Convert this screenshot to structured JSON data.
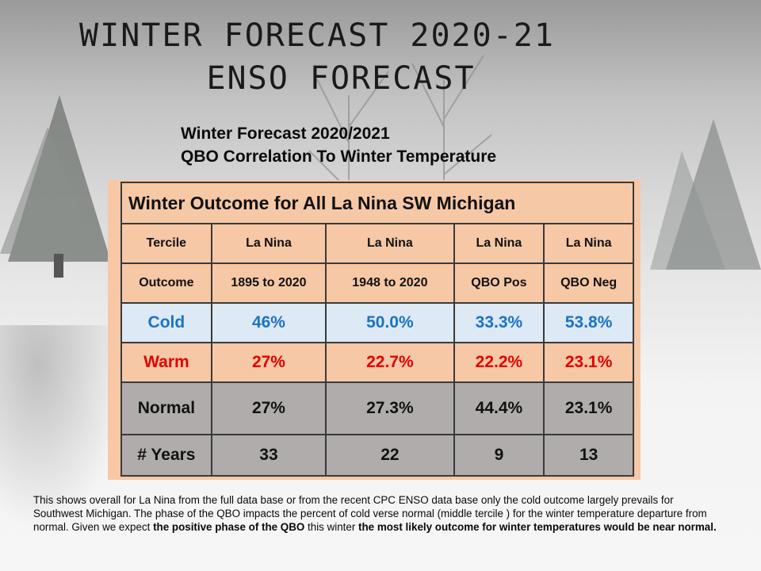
{
  "title": {
    "line1": "WINTER FORECAST 2020-21",
    "line2": "ENSO FORECAST"
  },
  "subtitle": {
    "line1": "Winter Forecast 2020/2021",
    "line2": "QBO Correlation To Winter Temperature"
  },
  "table": {
    "caption": "Winter Outcome for All La Nina SW Michigan",
    "tercile_row": [
      "Tercile",
      "La Nina",
      "La Nina",
      "La Nina",
      "La Nina"
    ],
    "outcome_row": [
      "Outcome",
      "1895 to 2020",
      "1948 to 2020",
      "QBO Pos",
      "QBO Neg"
    ],
    "rows": [
      {
        "label": "Cold",
        "values": [
          "46%",
          "50.0%",
          "33.3%",
          "53.8%"
        ]
      },
      {
        "label": "Warm",
        "values": [
          "27%",
          "22.7%",
          "22.2%",
          "23.1%"
        ]
      },
      {
        "label": "Normal",
        "values": [
          "27%",
          "27.3%",
          "44.4%",
          "23.1%"
        ]
      },
      {
        "label": "# Years",
        "values": [
          "33",
          "22",
          "9",
          "13"
        ]
      }
    ]
  },
  "note": {
    "part1": "This shows overall for La Nina from the full data base or from the recent CPC ENSO data base only the cold outcome largely prevails for Southwest Michigan. The phase of the QBO impacts the percent of cold verse normal (middle tercile ) for the winter temperature departure from normal.   Given we expect ",
    "bold1": "the positive phase of the QBO",
    "part2": "  this winter ",
    "bold2": "the most likely outcome for winter temperatures would be near normal."
  },
  "colors": {
    "cold": "#1b73c4",
    "warm": "#e30000",
    "table_peach": "#f6c8a5",
    "table_gray": "#b0acac"
  }
}
